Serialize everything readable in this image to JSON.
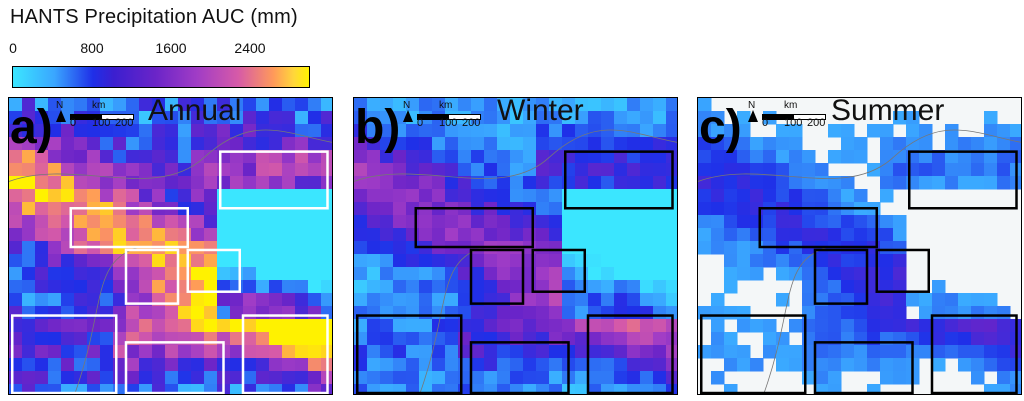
{
  "legend": {
    "title": "HANTS Precipitation AUC (mm)",
    "ticks": [
      {
        "label": "0",
        "value": 0
      },
      {
        "label": "800",
        "value": 800
      },
      {
        "label": "1600",
        "value": 1600
      },
      {
        "label": "2400",
        "value": 2400
      }
    ],
    "range": [
      0,
      3000
    ],
    "colors": [
      "#3be6ff",
      "#1f2fe8",
      "#a03cc6",
      "#ff9a5a",
      "#fff200"
    ]
  },
  "scalebar": {
    "north": "N",
    "unit": "km",
    "t0": "0",
    "t100": "100",
    "t200": "200"
  },
  "panels": [
    {
      "letter": "a)",
      "season": "Annual",
      "box_color": "#ffffff",
      "intensity": 1.0
    },
    {
      "letter": "b)",
      "season": "Winter",
      "box_color": "#000000",
      "intensity": 0.55
    },
    {
      "letter": "c)",
      "season": "Summer",
      "box_color": "#000000",
      "intensity": 0.3
    }
  ]
}
